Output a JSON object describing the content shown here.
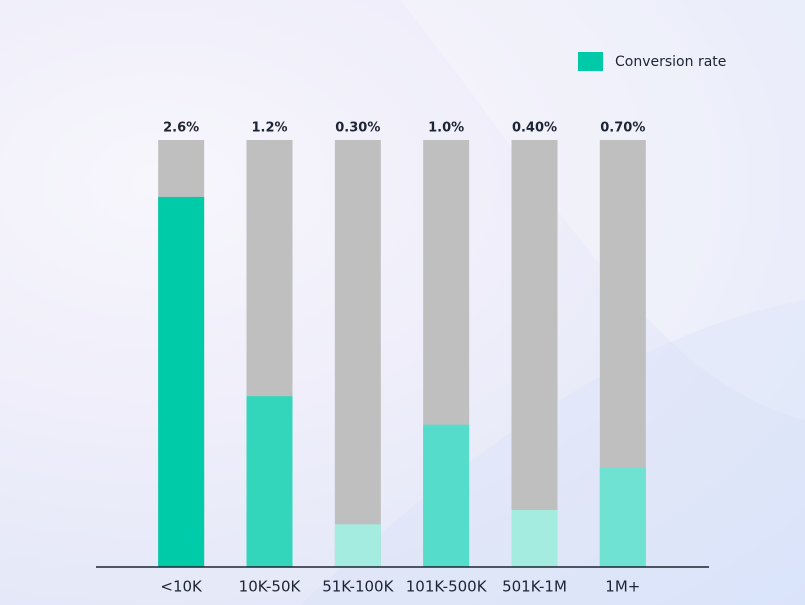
{
  "chart_data": {
    "type": "bar",
    "categories": [
      "<10K",
      "10K-50K",
      "51K-100K",
      "101K-500K",
      "501K-1M",
      "1M+"
    ],
    "series": [
      {
        "name": "Conversion rate",
        "color": "#00c9a7",
        "values": [
          2.6,
          1.2,
          0.3,
          1.0,
          0.4,
          0.7
        ],
        "value_labels": [
          "2.6%",
          "1.2%",
          "0.30%",
          "1.0%",
          "0.40%",
          "0.70%"
        ],
        "colors": [
          "#00cba9",
          "#33d6bb",
          "#a5ece0",
          "#55dccb",
          "#a5ece0",
          "#70e2d3"
        ]
      }
    ],
    "ylim": [
      0,
      3
    ],
    "legend": "top-right"
  }
}
